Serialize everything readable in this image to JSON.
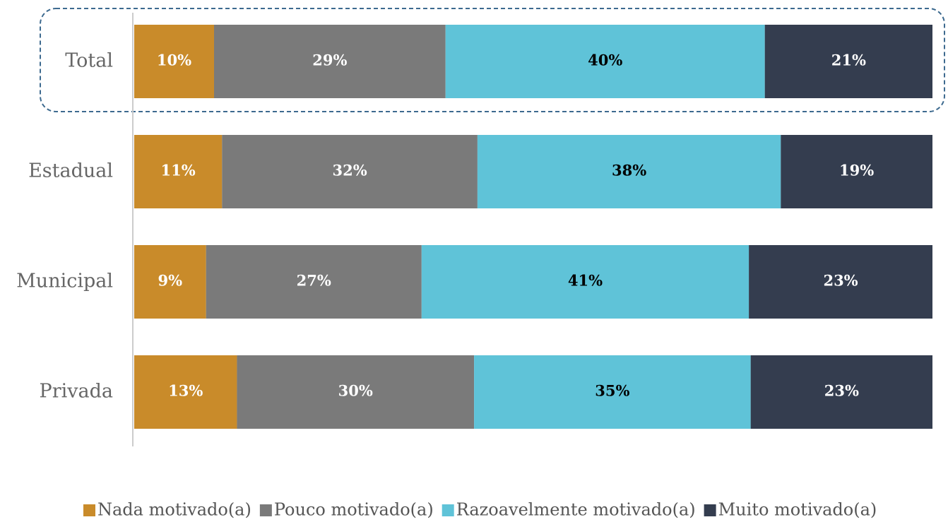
{
  "chart_data": {
    "type": "stacked-bar-horizontal",
    "categories": [
      "Total",
      "Estadual",
      "Municipal",
      "Privada"
    ],
    "series": [
      {
        "name": "Nada motivado(a)",
        "color": "#c98b2a",
        "label_color": "#ffffff",
        "values": [
          10,
          11,
          9,
          13
        ],
        "value_labels": [
          "10%",
          "11%",
          "9%",
          "13%"
        ]
      },
      {
        "name": "Pouco motivado(a)",
        "color": "#7a7a7a",
        "label_color": "#ffffff",
        "values": [
          29,
          32,
          27,
          30
        ],
        "value_labels": [
          "29%",
          "32%",
          "27%",
          "30%"
        ]
      },
      {
        "name": "Razoavelmente motivado(a)",
        "color": "#5fc3d8",
        "label_color": "#000000",
        "values": [
          40,
          38,
          41,
          35
        ],
        "value_labels": [
          "40%",
          "38%",
          "41%",
          "35%"
        ]
      },
      {
        "name": "Muito motivado(a)",
        "color": "#343d4f",
        "label_color": "#ffffff",
        "values": [
          21,
          19,
          23,
          23
        ],
        "value_labels": [
          "21%",
          "19%",
          "23%",
          "23%"
        ]
      }
    ],
    "legend": "bottom"
  }
}
